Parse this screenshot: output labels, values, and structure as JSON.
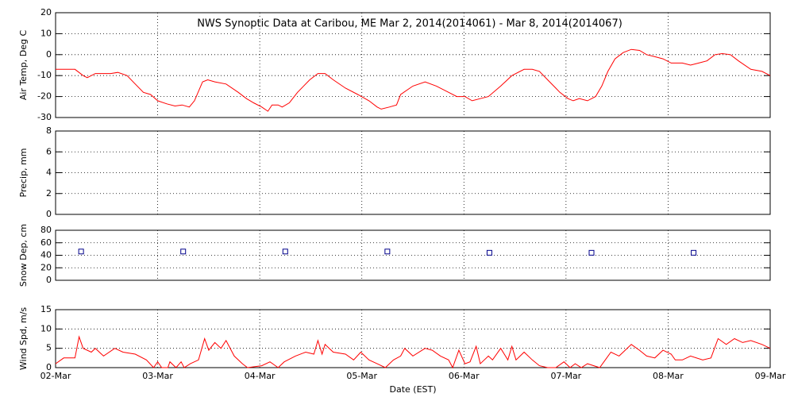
{
  "chart_data": [
    {
      "type": "line",
      "title": "NWS Synoptic Data at Caribou, ME   Mar  2, 2014(2014061) - Mar  8, 2014(2014067)",
      "ylabel": "Air Temp, Deg C",
      "xlim": [
        0,
        7
      ],
      "ylim": [
        -30,
        20
      ],
      "yticks": [
        -30,
        -20,
        -10,
        0,
        10,
        20
      ],
      "grid": true,
      "series": [
        {
          "name": "Air Temp",
          "color": "#ff0000",
          "x": [
            0,
            0.19,
            0.27,
            0.31,
            0.39,
            0.54,
            0.61,
            0.7,
            0.78,
            0.86,
            0.93,
            1.0,
            1.09,
            1.17,
            1.24,
            1.31,
            1.36,
            1.44,
            1.49,
            1.56,
            1.67,
            1.79,
            1.87,
            1.94,
            2.02,
            2.08,
            2.12,
            2.18,
            2.22,
            2.29,
            2.37,
            2.49,
            2.57,
            2.64,
            2.72,
            2.84,
            2.96,
            3.07,
            3.15,
            3.19,
            3.27,
            3.34,
            3.38,
            3.5,
            3.62,
            3.73,
            3.85,
            3.93,
            4.01,
            4.08,
            4.16,
            4.24,
            4.36,
            4.47,
            4.59,
            4.67,
            4.74,
            4.82,
            4.9,
            4.94,
            5.02,
            5.07,
            5.13,
            5.21,
            5.29,
            5.35,
            5.41,
            5.48,
            5.56,
            5.64,
            5.72,
            5.79,
            5.87,
            5.95,
            6.03,
            6.14,
            6.22,
            6.3,
            6.38,
            6.46,
            6.53,
            6.61,
            6.69,
            6.81,
            6.92,
            7
          ],
          "values": [
            -7,
            -7,
            -10,
            -11,
            -9,
            -9,
            -8.5,
            -10,
            -14,
            -18,
            -19,
            -22,
            -23.5,
            -24.5,
            -24,
            -25,
            -22,
            -13,
            -12,
            -13,
            -14,
            -18,
            -21,
            -23,
            -25,
            -27,
            -24,
            -24,
            -25,
            -23,
            -18,
            -12,
            -9,
            -9,
            -12,
            -16,
            -19,
            -22,
            -25,
            -26,
            -25,
            -24,
            -19,
            -15,
            -13,
            -15,
            -18,
            -20,
            -20,
            -22,
            -21,
            -20,
            -15,
            -10,
            -7,
            -7,
            -8,
            -12,
            -16,
            -18,
            -21,
            -22,
            -21,
            -22,
            -20,
            -15,
            -8,
            -2,
            1,
            2.5,
            2,
            0,
            -1,
            -2,
            -4,
            -4,
            -5,
            -4,
            -3,
            0,
            0.5,
            0,
            -3,
            -7,
            -8,
            -10
          ]
        }
      ]
    },
    {
      "type": "line",
      "ylabel": "Precip, mm",
      "xlim": [
        0,
        7
      ],
      "ylim": [
        0,
        8
      ],
      "yticks": [
        0,
        2,
        4,
        6,
        8
      ],
      "grid": true,
      "series": []
    },
    {
      "type": "scatter",
      "ylabel": "Snow Dep, cm",
      "xlim": [
        0,
        7
      ],
      "ylim": [
        0,
        80
      ],
      "yticks": [
        0,
        20,
        40,
        60,
        80
      ],
      "grid": true,
      "series": [
        {
          "name": "Snow Depth",
          "color": "#00008b",
          "x": [
            0.25,
            1.25,
            2.25,
            3.25,
            4.25,
            5.25,
            6.25
          ],
          "values": [
            46,
            46,
            46,
            46,
            44,
            44,
            44
          ]
        }
      ]
    },
    {
      "type": "line",
      "ylabel": "Wind Spd, m/s",
      "xlabel": "Date (EST)",
      "xlim": [
        0,
        7
      ],
      "ylim": [
        0,
        15
      ],
      "yticks": [
        0,
        5,
        10,
        15
      ],
      "grid": true,
      "xticks": [
        {
          "value": 0,
          "label": "02-Mar"
        },
        {
          "value": 1,
          "label": "03-Mar"
        },
        {
          "value": 2,
          "label": "04-Mar"
        },
        {
          "value": 3,
          "label": "05-Mar"
        },
        {
          "value": 4,
          "label": "06-Mar"
        },
        {
          "value": 5,
          "label": "07-Mar"
        },
        {
          "value": 6,
          "label": "08-Mar"
        },
        {
          "value": 7,
          "label": "09-Mar"
        }
      ],
      "series": [
        {
          "name": "Wind Speed",
          "color": "#ff0000",
          "x": [
            0,
            0.08,
            0.19,
            0.23,
            0.27,
            0.35,
            0.39,
            0.47,
            0.58,
            0.66,
            0.78,
            0.89,
            0.96,
            1.0,
            1.04,
            1.1,
            1.12,
            1.18,
            1.23,
            1.26,
            1.32,
            1.4,
            1.46,
            1.5,
            1.56,
            1.62,
            1.67,
            1.75,
            1.83,
            1.88,
            2.02,
            2.1,
            2.18,
            2.24,
            2.35,
            2.45,
            2.53,
            2.57,
            2.61,
            2.64,
            2.72,
            2.84,
            2.92,
            2.99,
            3.07,
            3.15,
            3.23,
            3.31,
            3.38,
            3.42,
            3.5,
            3.62,
            3.69,
            3.77,
            3.85,
            3.89,
            3.95,
            4.01,
            4.06,
            4.12,
            4.16,
            4.24,
            4.28,
            4.36,
            4.43,
            4.47,
            4.51,
            4.59,
            4.67,
            4.74,
            4.82,
            4.9,
            4.98,
            5.04,
            5.09,
            5.15,
            5.21,
            5.33,
            5.44,
            5.52,
            5.64,
            5.72,
            5.79,
            5.87,
            5.95,
            6.03,
            6.07,
            6.14,
            6.22,
            6.34,
            6.42,
            6.49,
            6.57,
            6.65,
            6.73,
            6.81,
            6.92,
            7
          ],
          "values": [
            1,
            2.5,
            2.5,
            8,
            5,
            4,
            5,
            3,
            5,
            4,
            3.5,
            2,
            0,
            1.5,
            0,
            0,
            1.5,
            0,
            1.5,
            0,
            1,
            2,
            7.5,
            4.5,
            6.5,
            5,
            7,
            3,
            1,
            0,
            0.5,
            1.5,
            0,
            1.5,
            3,
            4,
            3.5,
            7,
            3.5,
            6,
            4,
            3.5,
            2,
            4,
            2,
            1,
            0,
            2,
            3,
            5,
            3,
            5,
            4.5,
            3,
            2,
            0,
            4.5,
            1,
            1.5,
            5.5,
            1,
            3,
            2,
            5,
            2,
            5.5,
            2,
            4,
            2,
            0.5,
            0,
            0,
            1.5,
            0,
            1,
            0,
            1,
            0,
            4,
            3,
            6,
            4.5,
            3,
            2.5,
            4.5,
            3.5,
            2,
            2,
            3,
            2,
            2.5,
            7.5,
            6,
            7.5,
            6.5,
            7,
            6,
            5
          ]
        }
      ]
    }
  ]
}
